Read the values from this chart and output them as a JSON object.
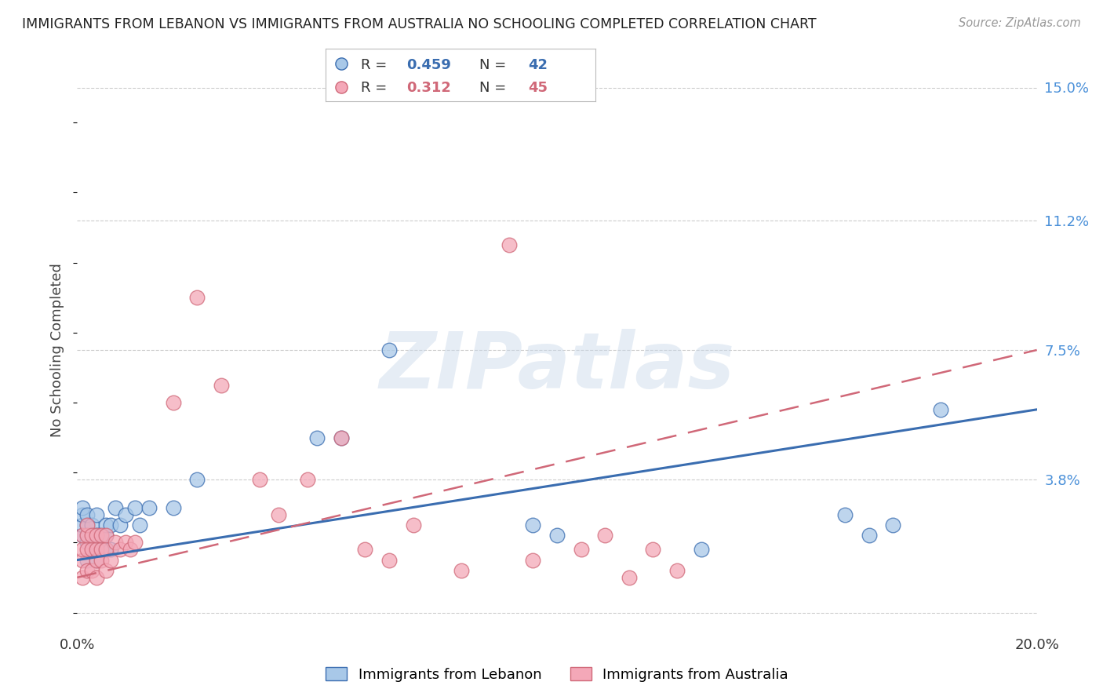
{
  "title": "IMMIGRANTS FROM LEBANON VS IMMIGRANTS FROM AUSTRALIA NO SCHOOLING COMPLETED CORRELATION CHART",
  "source": "Source: ZipAtlas.com",
  "ylabel": "No Schooling Completed",
  "xlim": [
    0.0,
    0.2
  ],
  "ylim": [
    -0.005,
    0.155
  ],
  "yticks": [
    0.0,
    0.038,
    0.075,
    0.112,
    0.15
  ],
  "ytick_labels": [
    "",
    "3.8%",
    "7.5%",
    "11.2%",
    "15.0%"
  ],
  "xticks": [
    0.0,
    0.05,
    0.1,
    0.15,
    0.2
  ],
  "xtick_labels": [
    "0.0%",
    "",
    "",
    "",
    "20.0%"
  ],
  "color_lebanon": "#a8c8e8",
  "color_australia": "#f4a8b8",
  "color_lebanon_line": "#3a6db0",
  "color_australia_line": "#d06878",
  "legend_label1": "Immigrants from Lebanon",
  "legend_label2": "Immigrants from Australia",
  "watermark": "ZIPatlas",
  "lebanon_x": [
    0.001,
    0.001,
    0.001,
    0.001,
    0.002,
    0.002,
    0.002,
    0.002,
    0.002,
    0.003,
    0.003,
    0.003,
    0.003,
    0.004,
    0.004,
    0.004,
    0.004,
    0.005,
    0.005,
    0.006,
    0.006,
    0.006,
    0.007,
    0.007,
    0.008,
    0.009,
    0.01,
    0.012,
    0.013,
    0.015,
    0.02,
    0.025,
    0.05,
    0.055,
    0.065,
    0.095,
    0.1,
    0.13,
    0.16,
    0.165,
    0.17,
    0.18
  ],
  "lebanon_y": [
    0.022,
    0.025,
    0.028,
    0.03,
    0.015,
    0.02,
    0.022,
    0.025,
    0.028,
    0.018,
    0.02,
    0.022,
    0.025,
    0.015,
    0.02,
    0.022,
    0.028,
    0.018,
    0.022,
    0.018,
    0.022,
    0.025,
    0.018,
    0.025,
    0.03,
    0.025,
    0.028,
    0.03,
    0.025,
    0.03,
    0.03,
    0.038,
    0.05,
    0.05,
    0.075,
    0.025,
    0.022,
    0.018,
    0.028,
    0.022,
    0.025,
    0.058
  ],
  "australia_x": [
    0.001,
    0.001,
    0.001,
    0.001,
    0.002,
    0.002,
    0.002,
    0.002,
    0.003,
    0.003,
    0.003,
    0.004,
    0.004,
    0.004,
    0.004,
    0.005,
    0.005,
    0.005,
    0.006,
    0.006,
    0.006,
    0.007,
    0.008,
    0.009,
    0.01,
    0.011,
    0.012,
    0.02,
    0.025,
    0.03,
    0.038,
    0.042,
    0.048,
    0.055,
    0.06,
    0.065,
    0.07,
    0.08,
    0.09,
    0.095,
    0.105,
    0.11,
    0.115,
    0.12,
    0.125
  ],
  "australia_y": [
    0.01,
    0.015,
    0.018,
    0.022,
    0.012,
    0.018,
    0.022,
    0.025,
    0.012,
    0.018,
    0.022,
    0.01,
    0.015,
    0.018,
    0.022,
    0.015,
    0.018,
    0.022,
    0.012,
    0.018,
    0.022,
    0.015,
    0.02,
    0.018,
    0.02,
    0.018,
    0.02,
    0.06,
    0.09,
    0.065,
    0.038,
    0.028,
    0.038,
    0.05,
    0.018,
    0.015,
    0.025,
    0.012,
    0.105,
    0.015,
    0.018,
    0.022,
    0.01,
    0.018,
    0.012
  ],
  "lebanon_line_x0": 0.0,
  "lebanon_line_x1": 0.2,
  "lebanon_line_y0": 0.015,
  "lebanon_line_y1": 0.058,
  "australia_line_x0": 0.0,
  "australia_line_x1": 0.2,
  "australia_line_y0": 0.01,
  "australia_line_y1": 0.075,
  "background_color": "#ffffff",
  "grid_color": "#cccccc",
  "title_color": "#222222",
  "axis_label_color": "#444444",
  "tick_label_color_right": "#4a90d9",
  "tick_label_color_bottom": "#333333",
  "r_value1": "0.459",
  "n_value1": "42",
  "r_value2": "0.312",
  "n_value2": "45"
}
